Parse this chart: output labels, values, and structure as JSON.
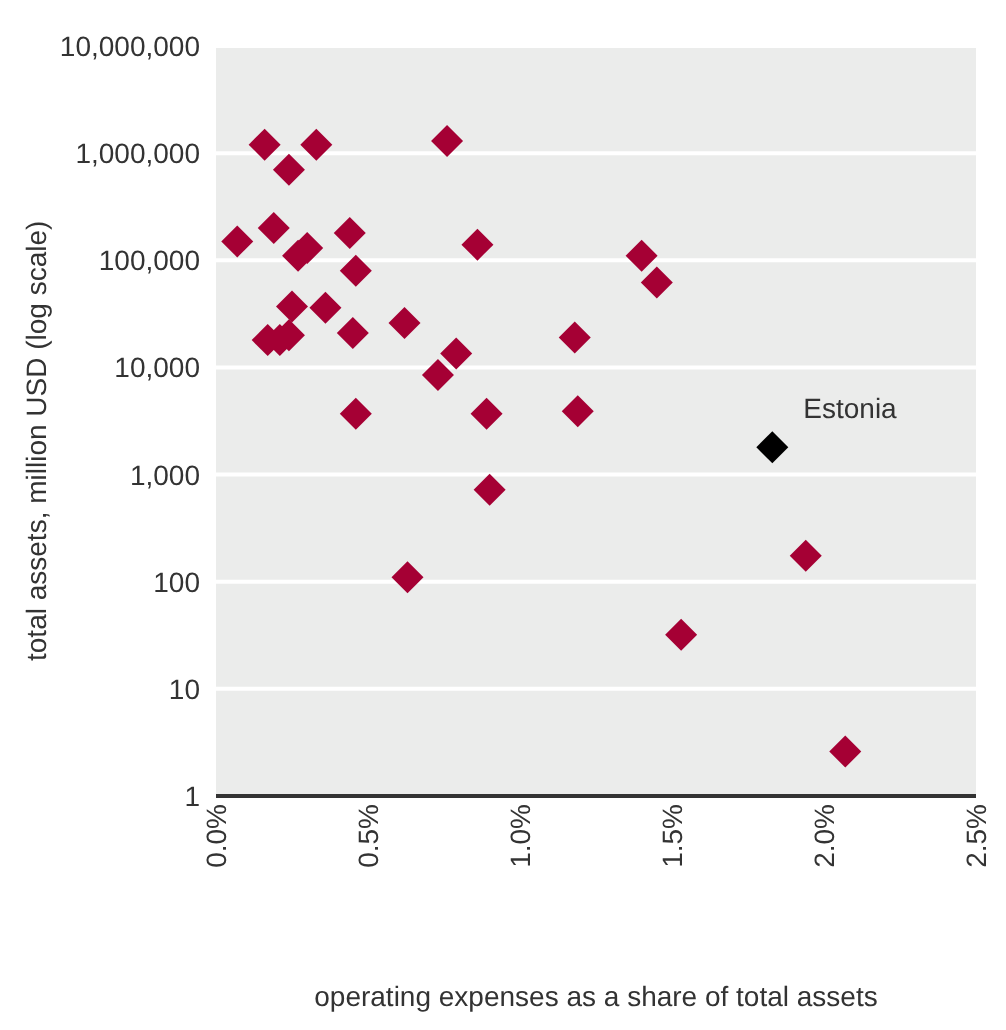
{
  "chart_data": {
    "type": "scatter",
    "xlabel": "operating expenses as a share of total assets",
    "ylabel": "total assets, million USD (log scale)",
    "log": "y",
    "grid": "y",
    "marker": "diamond",
    "legend": false,
    "xlim": [
      0,
      2.5
    ],
    "xticks": [
      {
        "value": 0,
        "label": "0.0%"
      },
      {
        "value": 0.5,
        "label": "0.5%"
      },
      {
        "value": 1,
        "label": "1.0%"
      },
      {
        "value": 1.5,
        "label": "1.5%"
      },
      {
        "value": 2,
        "label": "2.0%"
      },
      {
        "value": 2.5,
        "label": "2.5%"
      }
    ],
    "ylim": [
      1,
      10000000
    ],
    "yticks": [
      {
        "value": 1,
        "label": "1"
      },
      {
        "value": 10,
        "label": "10"
      },
      {
        "value": 100,
        "label": "100"
      },
      {
        "value": 1000,
        "label": "1,000"
      },
      {
        "value": 10000,
        "label": "10,000"
      },
      {
        "value": 100000,
        "label": "100,000"
      },
      {
        "value": 1000000,
        "label": "1,000,000"
      },
      {
        "value": 10000000,
        "label": "10,000,000"
      }
    ],
    "series": [
      {
        "color": "#a50034",
        "x": [
          0.07,
          0.16,
          0.19,
          0.33,
          0.24,
          0.27,
          0.3,
          0.44,
          0.46,
          0.76,
          0.86,
          0.25,
          0.36,
          0.17,
          0.21,
          0.24,
          0.45,
          0.62,
          0.73,
          0.79,
          0.46,
          0.89,
          1.18,
          1.19,
          1.4,
          1.45,
          1.94,
          1.53,
          2.07,
          0.9,
          0.63
        ],
        "values": [
          150000,
          1200000,
          200000,
          1200000,
          700000,
          110000,
          130000,
          180000,
          80000,
          1300000,
          140000,
          37000,
          36000,
          18000,
          18000,
          20000,
          21000,
          26000,
          8500,
          13500,
          3700,
          3700,
          19000,
          3900,
          110000,
          62000,
          175,
          32,
          2.6,
          720,
          110
        ]
      },
      {
        "name": "Estonia",
        "color": "#000000",
        "x": [
          1.83
        ],
        "values": [
          1800
        ]
      }
    ]
  }
}
